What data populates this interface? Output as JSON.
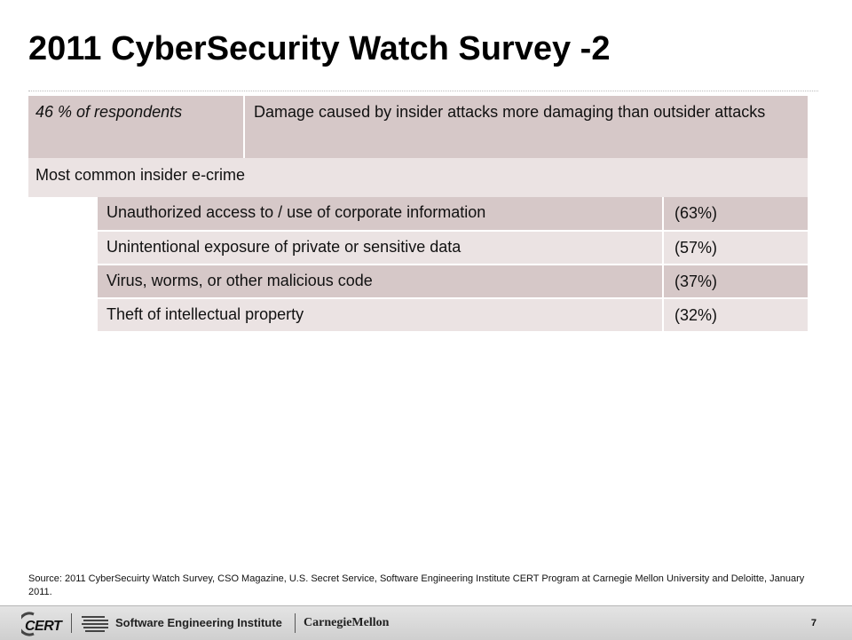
{
  "slide": {
    "title": "2011 CyberSecurity Watch Survey -2"
  },
  "summary": {
    "respondents": "46 % of respondents",
    "finding": "Damage caused by insider attacks more damaging than outsider attacks",
    "subheading": "Most common insider e-crime"
  },
  "crimes": {
    "items": [
      {
        "label": "Unauthorized access to / use of corporate information",
        "pct": "(63%)"
      },
      {
        "label": "Unintentional exposure of private or sensitive data",
        "pct": "(57%)"
      },
      {
        "label": "Virus, worms, or other malicious code",
        "pct": "(37%)"
      },
      {
        "label": "Theft of intellectual property",
        "pct": "(32%)"
      }
    ]
  },
  "source": "Source: 2011 CyberSecuirty Watch Survey, CSO Magazine, U.S. Secret Service, Software Engineering Institute CERT Program at Carnegie Mellon University and Deloitte, January 2011.",
  "footer": {
    "cert_label": "CERT",
    "sei_label": "Software Engineering Institute",
    "cmu_label": "CarnegieMellon",
    "page_number": "7"
  },
  "colors": {
    "dark_row": "#d6c8c8",
    "light_row": "#ebe3e3"
  }
}
